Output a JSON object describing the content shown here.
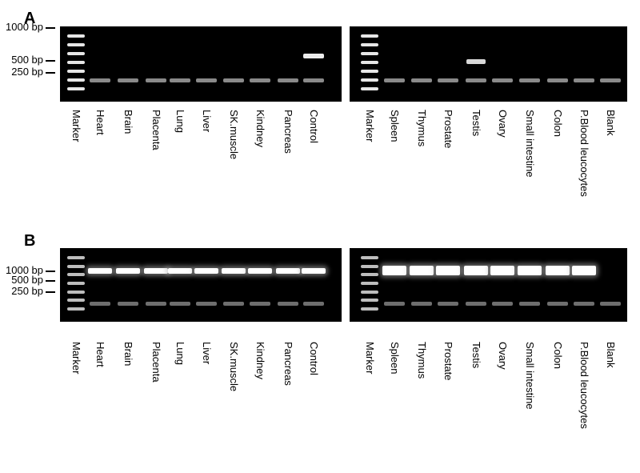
{
  "panels": [
    {
      "letter": "A",
      "size_markers": [
        "1000 bp",
        "500 bp",
        "250 bp"
      ],
      "left_lanes": [
        "Marker",
        "Heart",
        "Brain",
        "Placenta",
        "Lung",
        "Liver",
        "SK.muscle",
        "Kindney",
        "Pancreas",
        "Control"
      ],
      "right_lanes": [
        "Marker",
        "Spleen",
        "Thymus",
        "Prostate",
        "Testis",
        "Ovary",
        "Small intestine",
        "Colon",
        "P.Blood leucocytes",
        "Blank"
      ]
    },
    {
      "letter": "B",
      "size_markers": [
        "1000 bp",
        "500 bp",
        "250 bp"
      ],
      "left_lanes": [
        "Marker",
        "Heart",
        "Brain",
        "Placenta",
        "Lung",
        "Liver",
        "SK.muscle",
        "Kindney",
        "Pancreas",
        "Control"
      ],
      "right_lanes": [
        "Marker",
        "Spleen",
        "Thymus",
        "Prostate",
        "Testis",
        "Ovary",
        "Small intestine",
        "Colon",
        "P.Blood leucocytes",
        "Blank"
      ]
    }
  ]
}
